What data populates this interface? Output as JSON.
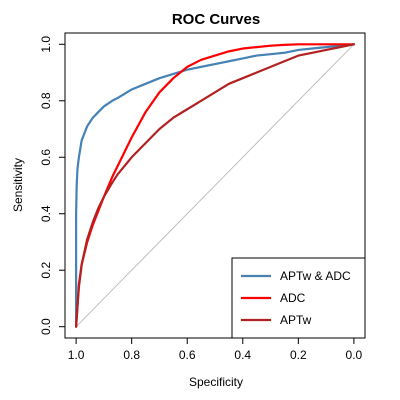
{
  "chart_data": {
    "type": "line",
    "title": "ROC Curves",
    "xlabel": "Specificity",
    "ylabel": "Sensitivity",
    "x_reversed": true,
    "xlim": [
      1.04,
      -0.04
    ],
    "ylim": [
      -0.04,
      1.04
    ],
    "xticks": [
      1.0,
      0.8,
      0.6,
      0.4,
      0.2,
      0.0
    ],
    "yticks": [
      0.0,
      0.2,
      0.4,
      0.6,
      0.8,
      1.0
    ],
    "xtick_labels": [
      "1.0",
      "0.8",
      "0.6",
      "0.4",
      "0.2",
      "0.0"
    ],
    "ytick_labels": [
      "0.0",
      "0.2",
      "0.4",
      "0.6",
      "0.8",
      "1.0"
    ],
    "grid": false,
    "legend_position": "bottom-right",
    "reference_line": {
      "x": [
        1.0,
        0.0
      ],
      "y": [
        0.0,
        1.0
      ],
      "color": "#bebebe"
    },
    "series": [
      {
        "name": "APTw & ADC",
        "color": "#4682b4",
        "x": [
          1.0,
          1.0,
          1.0,
          0.998,
          0.995,
          0.99,
          0.98,
          0.96,
          0.94,
          0.92,
          0.9,
          0.87,
          0.85,
          0.8,
          0.75,
          0.7,
          0.65,
          0.6,
          0.55,
          0.5,
          0.45,
          0.4,
          0.35,
          0.3,
          0.25,
          0.2,
          0.15,
          0.1,
          0.05,
          0.0
        ],
        "y": [
          0.0,
          0.2,
          0.4,
          0.5,
          0.56,
          0.6,
          0.66,
          0.71,
          0.74,
          0.76,
          0.78,
          0.8,
          0.81,
          0.84,
          0.86,
          0.88,
          0.895,
          0.91,
          0.92,
          0.93,
          0.94,
          0.95,
          0.96,
          0.965,
          0.97,
          0.98,
          0.985,
          0.99,
          0.995,
          1.0
        ]
      },
      {
        "name": "ADC",
        "color": "#ff0000",
        "x": [
          1.0,
          0.99,
          0.98,
          0.96,
          0.94,
          0.92,
          0.9,
          0.87,
          0.85,
          0.82,
          0.8,
          0.75,
          0.7,
          0.65,
          0.6,
          0.55,
          0.5,
          0.45,
          0.4,
          0.35,
          0.3,
          0.25,
          0.2,
          0.1,
          0.0
        ],
        "y": [
          0.0,
          0.15,
          0.22,
          0.3,
          0.36,
          0.41,
          0.46,
          0.53,
          0.57,
          0.63,
          0.67,
          0.76,
          0.83,
          0.88,
          0.92,
          0.945,
          0.96,
          0.975,
          0.985,
          0.99,
          0.995,
          0.998,
          1.0,
          1.0,
          1.0
        ]
      },
      {
        "name": "APTw",
        "color": "#b22222",
        "x": [
          1.0,
          0.99,
          0.98,
          0.96,
          0.94,
          0.92,
          0.9,
          0.87,
          0.85,
          0.8,
          0.75,
          0.7,
          0.65,
          0.6,
          0.55,
          0.5,
          0.45,
          0.4,
          0.35,
          0.3,
          0.25,
          0.2,
          0.15,
          0.1,
          0.05,
          0.0
        ],
        "y": [
          0.0,
          0.14,
          0.22,
          0.31,
          0.37,
          0.42,
          0.46,
          0.51,
          0.54,
          0.6,
          0.65,
          0.7,
          0.74,
          0.77,
          0.8,
          0.83,
          0.86,
          0.88,
          0.9,
          0.92,
          0.94,
          0.96,
          0.97,
          0.98,
          0.99,
          1.0
        ]
      }
    ]
  }
}
